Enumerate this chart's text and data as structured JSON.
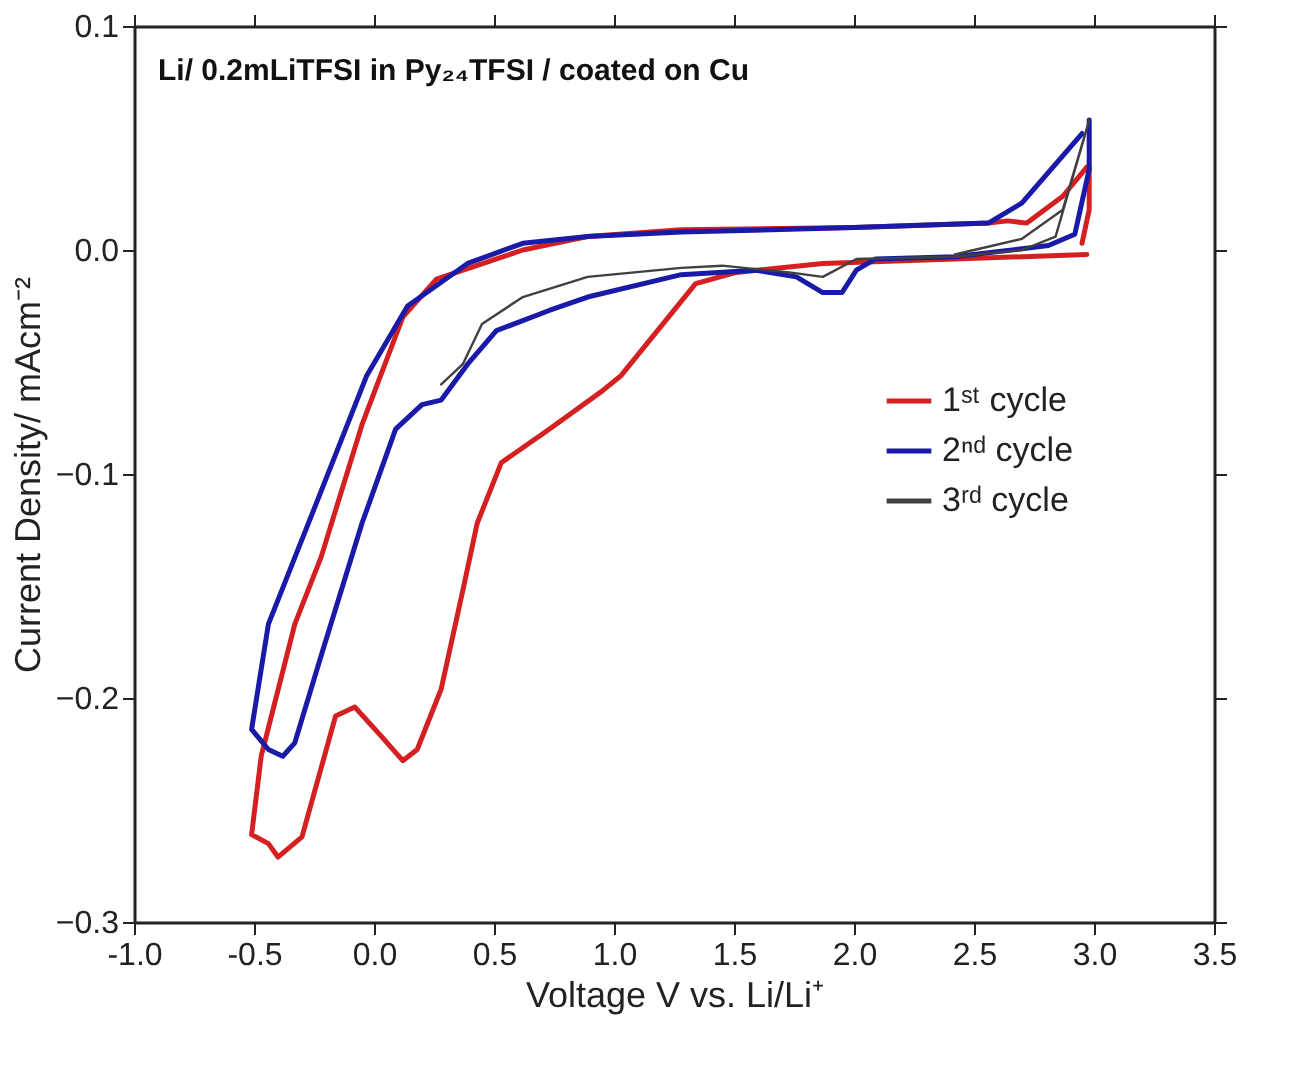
{
  "chart_data": {
    "type": "line",
    "title": "Li/ 0.2mLiTFSI in Py₂₄TFSI / coated on Cu",
    "xlabel": "Voltage V vs. Li/Li⁺",
    "ylabel": "Current Density/ mAcm⁻²",
    "xlim": [
      -1.0,
      3.5
    ],
    "ylim": [
      -0.3,
      0.1
    ],
    "xticks": [
      {
        "value": -1.0,
        "label": "-1.0"
      },
      {
        "value": -0.5,
        "label": "-0.5"
      },
      {
        "value": 0.0,
        "label": "0.0"
      },
      {
        "value": 0.5,
        "label": "0.5"
      },
      {
        "value": 1.0,
        "label": "1.0"
      },
      {
        "value": 1.5,
        "label": "1.5"
      },
      {
        "value": 2.0,
        "label": "2.0"
      },
      {
        "value": 2.5,
        "label": "2.5"
      },
      {
        "value": 3.0,
        "label": "3.0"
      },
      {
        "value": 3.5,
        "label": "3.5"
      }
    ],
    "yticks": [
      -0.3,
      -0.2,
      -0.1,
      {
        "value": 0.0,
        "label": "0.0"
      },
      0.1
    ],
    "grid": false,
    "legend": "right",
    "marker": "none",
    "line_style": "solid",
    "series": [
      {
        "name": "1ˢᵗ cycle",
        "color": "#d42020",
        "x": [
          2.97,
          2.42,
          1.87,
          1.51,
          1.34,
          1.03,
          0.95,
          0.73,
          0.53,
          0.43,
          0.37,
          0.28,
          0.18,
          0.12,
          0.03,
          -0.08,
          -0.16,
          -0.3,
          -0.4,
          -0.44,
          -0.51,
          -0.47,
          -0.33,
          -0.22,
          -0.05,
          0.12,
          0.26,
          0.62,
          0.89,
          1.28,
          2.0,
          2.56,
          2.64,
          2.72,
          2.87,
          2.97,
          2.98,
          2.98,
          2.95
        ],
        "values": [
          -0.002,
          -0.004,
          -0.006,
          -0.01,
          -0.015,
          -0.056,
          -0.063,
          -0.08,
          -0.095,
          -0.122,
          -0.152,
          -0.196,
          -0.223,
          -0.228,
          -0.217,
          -0.204,
          -0.208,
          -0.262,
          -0.271,
          -0.265,
          -0.261,
          -0.226,
          -0.167,
          -0.137,
          -0.078,
          -0.03,
          -0.013,
          0.0,
          0.006,
          0.009,
          0.01,
          0.012,
          0.013,
          0.012,
          0.024,
          0.037,
          0.037,
          0.018,
          0.003
        ]
      },
      {
        "name": "2ⁿᵈ cycle",
        "color": "#1a1aa8",
        "x": [
          2.98,
          2.98,
          2.92,
          2.81,
          2.42,
          2.09,
          2.01,
          1.95,
          1.87,
          1.76,
          1.59,
          1.28,
          0.89,
          0.73,
          0.51,
          0.39,
          0.28,
          0.2,
          0.09,
          -0.05,
          -0.22,
          -0.33,
          -0.38,
          -0.44,
          -0.51,
          -0.44,
          -0.24,
          -0.03,
          0.14,
          0.39,
          0.62,
          0.89,
          1.28,
          2.0,
          2.56,
          2.7,
          2.95
        ],
        "values": [
          0.058,
          0.036,
          0.007,
          0.002,
          -0.003,
          -0.004,
          -0.009,
          -0.019,
          -0.019,
          -0.012,
          -0.009,
          -0.011,
          -0.021,
          -0.027,
          -0.036,
          -0.051,
          -0.067,
          -0.069,
          -0.08,
          -0.122,
          -0.181,
          -0.22,
          -0.226,
          -0.223,
          -0.214,
          -0.167,
          -0.113,
          -0.056,
          -0.025,
          -0.006,
          0.003,
          0.006,
          0.008,
          0.01,
          0.012,
          0.021,
          0.052
        ]
      },
      {
        "name": "3ʳᵈ cycle",
        "color": "#404040",
        "x": [
          2.42,
          2.7,
          2.87,
          2.98,
          2.84,
          2.7,
          2.42,
          2.01,
          1.87,
          1.73,
          1.45,
          1.28,
          0.89,
          0.62,
          0.45,
          0.37,
          0.28
        ],
        "values": [
          -0.002,
          0.005,
          0.018,
          0.058,
          0.006,
          0.0,
          -0.003,
          -0.004,
          -0.012,
          -0.01,
          -0.007,
          -0.008,
          -0.012,
          -0.021,
          -0.033,
          -0.051,
          -0.06
        ]
      }
    ]
  }
}
